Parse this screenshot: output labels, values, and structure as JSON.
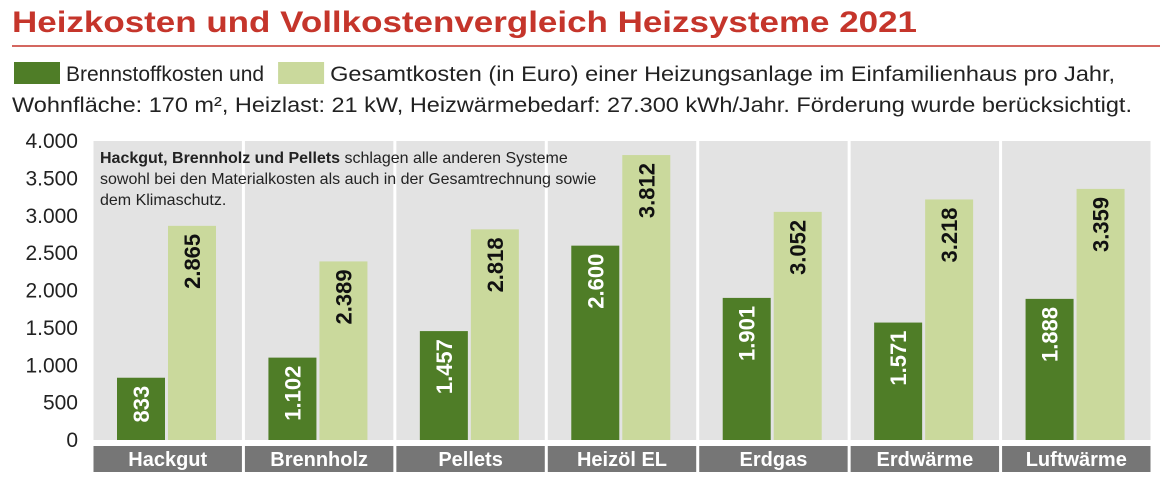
{
  "chart_data": {
    "type": "bar",
    "title": "Heizkosten und Vollkostenvergleich Heizsysteme 2021",
    "subtitle": "Wohnfläche: 170 m², Heizlast: 21 kW, Heizwärmebedarf: 27.300 kWh/Jahr. Förderung wurde berücksichtigt.",
    "annotation": {
      "bold": "Hackgut, Brennholz und Pellets",
      "text": " schlagen alle anderen Systeme sowohl bei den Materialkosten als auch in der Gesamtrechnung sowie dem Klimaschutz."
    },
    "categories": [
      "Hackgut",
      "Brennholz",
      "Pellets",
      "Heizöl EL",
      "Erdgas",
      "Erdwärme",
      "Luftwärme"
    ],
    "series": [
      {
        "name": "Brennstoffkosten und",
        "color": "#4f7d27",
        "values": [
          833,
          1102,
          1457,
          2600,
          1901,
          1571,
          1888
        ],
        "value_labels": [
          "833",
          "1.102",
          "1.457",
          "2.600",
          "1.901",
          "1.571",
          "1.888"
        ]
      },
      {
        "name": "Gesamtkosten (in Euro) einer Heizungsanlage im Einfamilienhaus pro Jahr,",
        "color": "#cad99c",
        "values": [
          2865,
          2389,
          2818,
          3812,
          3052,
          3218,
          3359
        ],
        "value_labels": [
          "2.865",
          "2.389",
          "2.818",
          "3.812",
          "3.052",
          "3.218",
          "3.359"
        ]
      }
    ],
    "ylim": [
      0,
      4000
    ],
    "yticks": [
      0,
      500,
      {
        "value": 1000,
        "label": "1.000"
      },
      {
        "value": 1500,
        "label": "1.500"
      },
      {
        "value": 2000,
        "label": "2.000"
      },
      {
        "value": 2500,
        "label": "2.500"
      },
      {
        "value": 3000,
        "label": "3.000"
      },
      {
        "value": 3500,
        "label": "3.500"
      },
      {
        "value": 4000,
        "label": "4.000"
      }
    ]
  }
}
